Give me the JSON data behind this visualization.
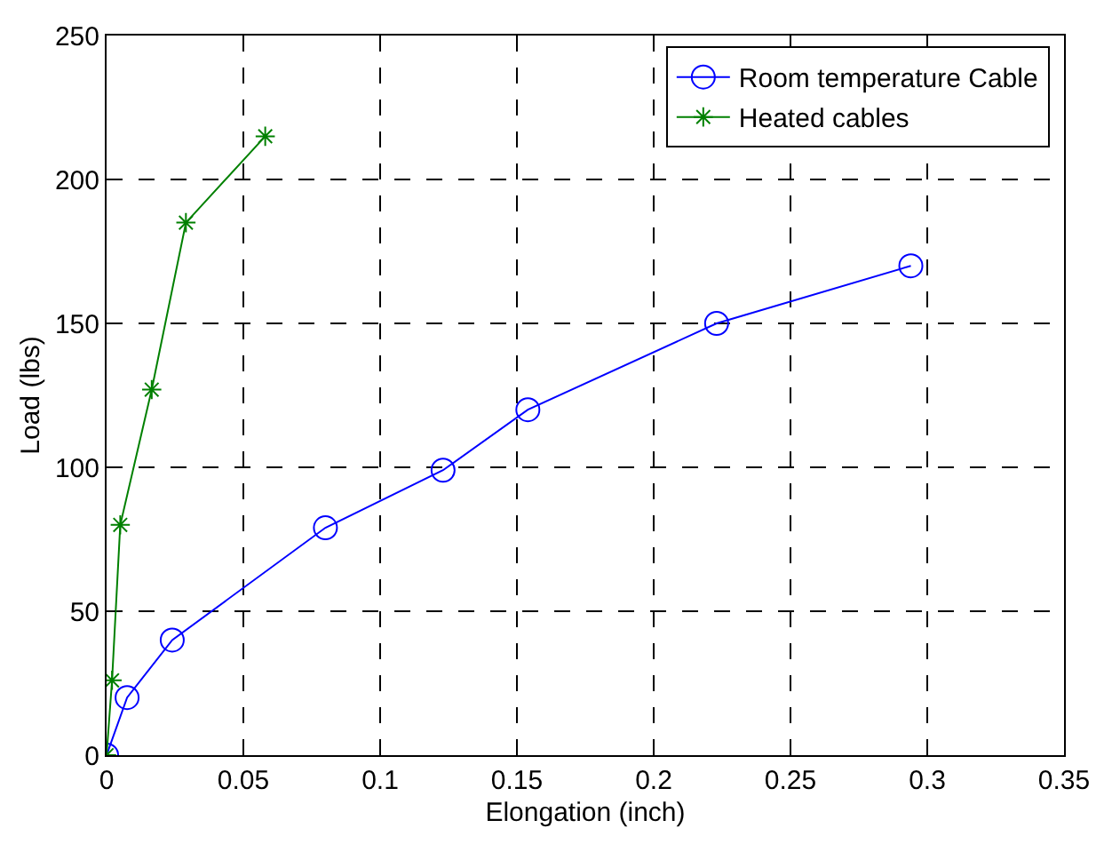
{
  "chart_data": {
    "type": "line",
    "xlabel": "Elongation (inch)",
    "ylabel": "Load (lbs)",
    "xlim": [
      0,
      0.35
    ],
    "xticks": [
      0,
      0.05,
      0.1,
      0.15,
      0.2,
      0.25,
      0.3,
      0.35
    ],
    "ylim": [
      0,
      250
    ],
    "yticks": [
      0,
      50,
      100,
      150,
      200,
      250
    ],
    "grid": true,
    "legend": "top right",
    "series": [
      {
        "name": "Room temperature Cable",
        "color": "#0000ff",
        "marker": "circle",
        "x": [
          0,
          0.0075,
          0.024,
          0.08,
          0.123,
          0.154,
          0.223,
          0.294
        ],
        "values": [
          0,
          20,
          40,
          79,
          99,
          120,
          150,
          170
        ]
      },
      {
        "name": "Heated cables",
        "color": "#008000",
        "marker": "cross",
        "x": [
          0,
          0.002,
          0.005,
          0.0165,
          0.029,
          0.058
        ],
        "values": [
          0,
          26,
          80,
          127,
          185,
          215
        ]
      }
    ]
  }
}
